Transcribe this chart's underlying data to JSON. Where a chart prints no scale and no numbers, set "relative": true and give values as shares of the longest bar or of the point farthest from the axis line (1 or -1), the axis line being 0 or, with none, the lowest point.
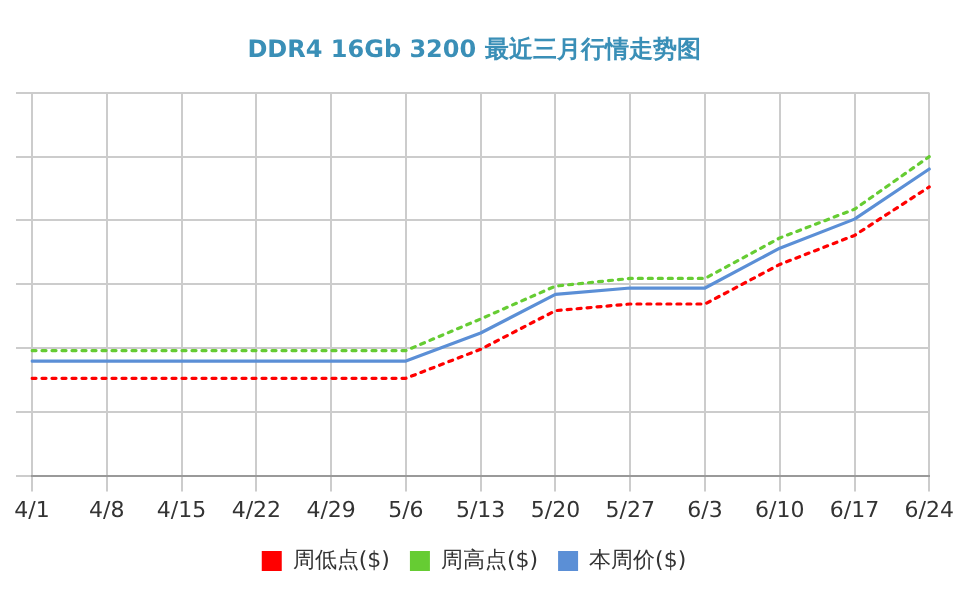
{
  "chart_data": {
    "type": "line",
    "title": "DDR4 16Gb 3200 最近三月行情走势图",
    "relative": true,
    "grid": true,
    "legend": "bottom",
    "marker": "none",
    "categories": [
      "4/1",
      "4/8",
      "4/15",
      "4/22",
      "4/29",
      "5/6",
      "5/13",
      "5/20",
      "5/27",
      "6/3",
      "6/10",
      "6/17",
      "6/24"
    ],
    "series": [
      {
        "name": "周低点($)",
        "color": "#ff0000",
        "line_style": "dotted",
        "values": [
          0.305,
          0.305,
          0.305,
          0.305,
          0.305,
          0.305,
          0.396,
          0.517,
          0.538,
          0.538,
          0.662,
          0.753,
          0.905
        ]
      },
      {
        "name": "周高点($)",
        "color": "#66cc33",
        "line_style": "dotted",
        "values": [
          0.392,
          0.392,
          0.392,
          0.392,
          0.392,
          0.392,
          0.491,
          0.594,
          0.618,
          0.618,
          0.745,
          0.835,
          1
        ]
      },
      {
        "name": "本周价($)",
        "color": "#5b8fd6",
        "line_style": "solid",
        "values": [
          0.359,
          0.359,
          0.359,
          0.359,
          0.359,
          0.359,
          0.447,
          0.568,
          0.588,
          0.588,
          0.713,
          0.804,
          0.961
        ]
      }
    ]
  }
}
